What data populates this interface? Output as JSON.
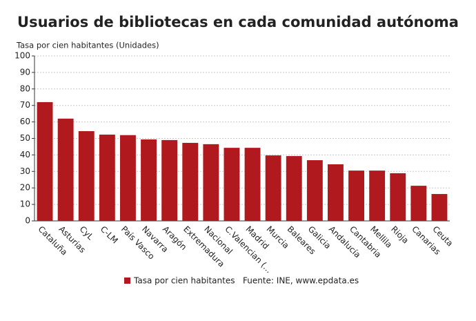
{
  "chart_data": {
    "type": "bar",
    "title": "Usuarios de bibliotecas en cada comunidad autónoma",
    "y_label": "Tasa por cien habitantes (Unidades)",
    "categories": [
      "Cataluña",
      "Asturias",
      "CyL",
      "C-LM",
      "País Vasco",
      "Navarra",
      "Aragón",
      "Extremadura",
      "Nacional",
      "C.Valencian (...",
      "Madrid",
      "Murcia",
      "Baleares",
      "Galicia",
      "Andalucía",
      "Cantabria",
      "Mellila",
      "Rioja",
      "Canarias",
      "Ceuta"
    ],
    "series": [
      {
        "name": "Tasa por cien habitantes",
        "color": "#b0191e",
        "values": [
          72,
          62,
          54.4,
          52.3,
          52,
          49.4,
          49,
          47.3,
          46.5,
          44.3,
          44.3,
          39.7,
          39.3,
          36.8,
          34.3,
          30.5,
          30.5,
          28.9,
          21.3,
          16.3
        ]
      }
    ],
    "source": "Fuente: INE, www.epdata.es",
    "ylim": [
      0,
      100
    ],
    "yticks": [
      0,
      10,
      20,
      30,
      40,
      50,
      60,
      70,
      80,
      90,
      100
    ],
    "grid": true
  }
}
